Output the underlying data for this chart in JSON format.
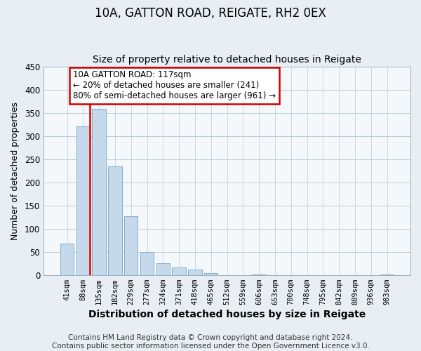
{
  "title": "10A, GATTON ROAD, REIGATE, RH2 0EX",
  "subtitle": "Size of property relative to detached houses in Reigate",
  "xlabel": "Distribution of detached houses by size in Reigate",
  "ylabel": "Number of detached properties",
  "bar_labels": [
    "41sqm",
    "88sqm",
    "135sqm",
    "182sqm",
    "229sqm",
    "277sqm",
    "324sqm",
    "371sqm",
    "418sqm",
    "465sqm",
    "512sqm",
    "559sqm",
    "606sqm",
    "653sqm",
    "700sqm",
    "748sqm",
    "795sqm",
    "842sqm",
    "889sqm",
    "936sqm",
    "983sqm"
  ],
  "bar_heights": [
    68,
    320,
    358,
    234,
    127,
    49,
    25,
    16,
    12,
    4,
    0,
    0,
    1,
    0,
    0,
    0,
    0,
    0,
    0,
    0,
    1
  ],
  "bar_color": "#c5d9ea",
  "bar_edge_color": "#85aec8",
  "vline_color": "#dd0000",
  "annotation_text": "10A GATTON ROAD: 117sqm\n← 20% of detached houses are smaller (241)\n80% of semi-detached houses are larger (961) →",
  "annotation_box_color": "#ffffff",
  "annotation_box_edge": "#cc0000",
  "ylim": [
    0,
    450
  ],
  "yticks": [
    0,
    50,
    100,
    150,
    200,
    250,
    300,
    350,
    400,
    450
  ],
  "footer": "Contains HM Land Registry data © Crown copyright and database right 2024.\nContains public sector information licensed under the Open Government Licence v3.0.",
  "background_color": "#e8eef4",
  "plot_bg_color": "#f5f8fb",
  "grid_color": "#b8ccd8",
  "title_fontsize": 12,
  "subtitle_fontsize": 10,
  "xlabel_fontsize": 10,
  "ylabel_fontsize": 9,
  "tick_fontsize": 7.5,
  "footer_fontsize": 7.5,
  "annotation_fontsize": 8.5
}
